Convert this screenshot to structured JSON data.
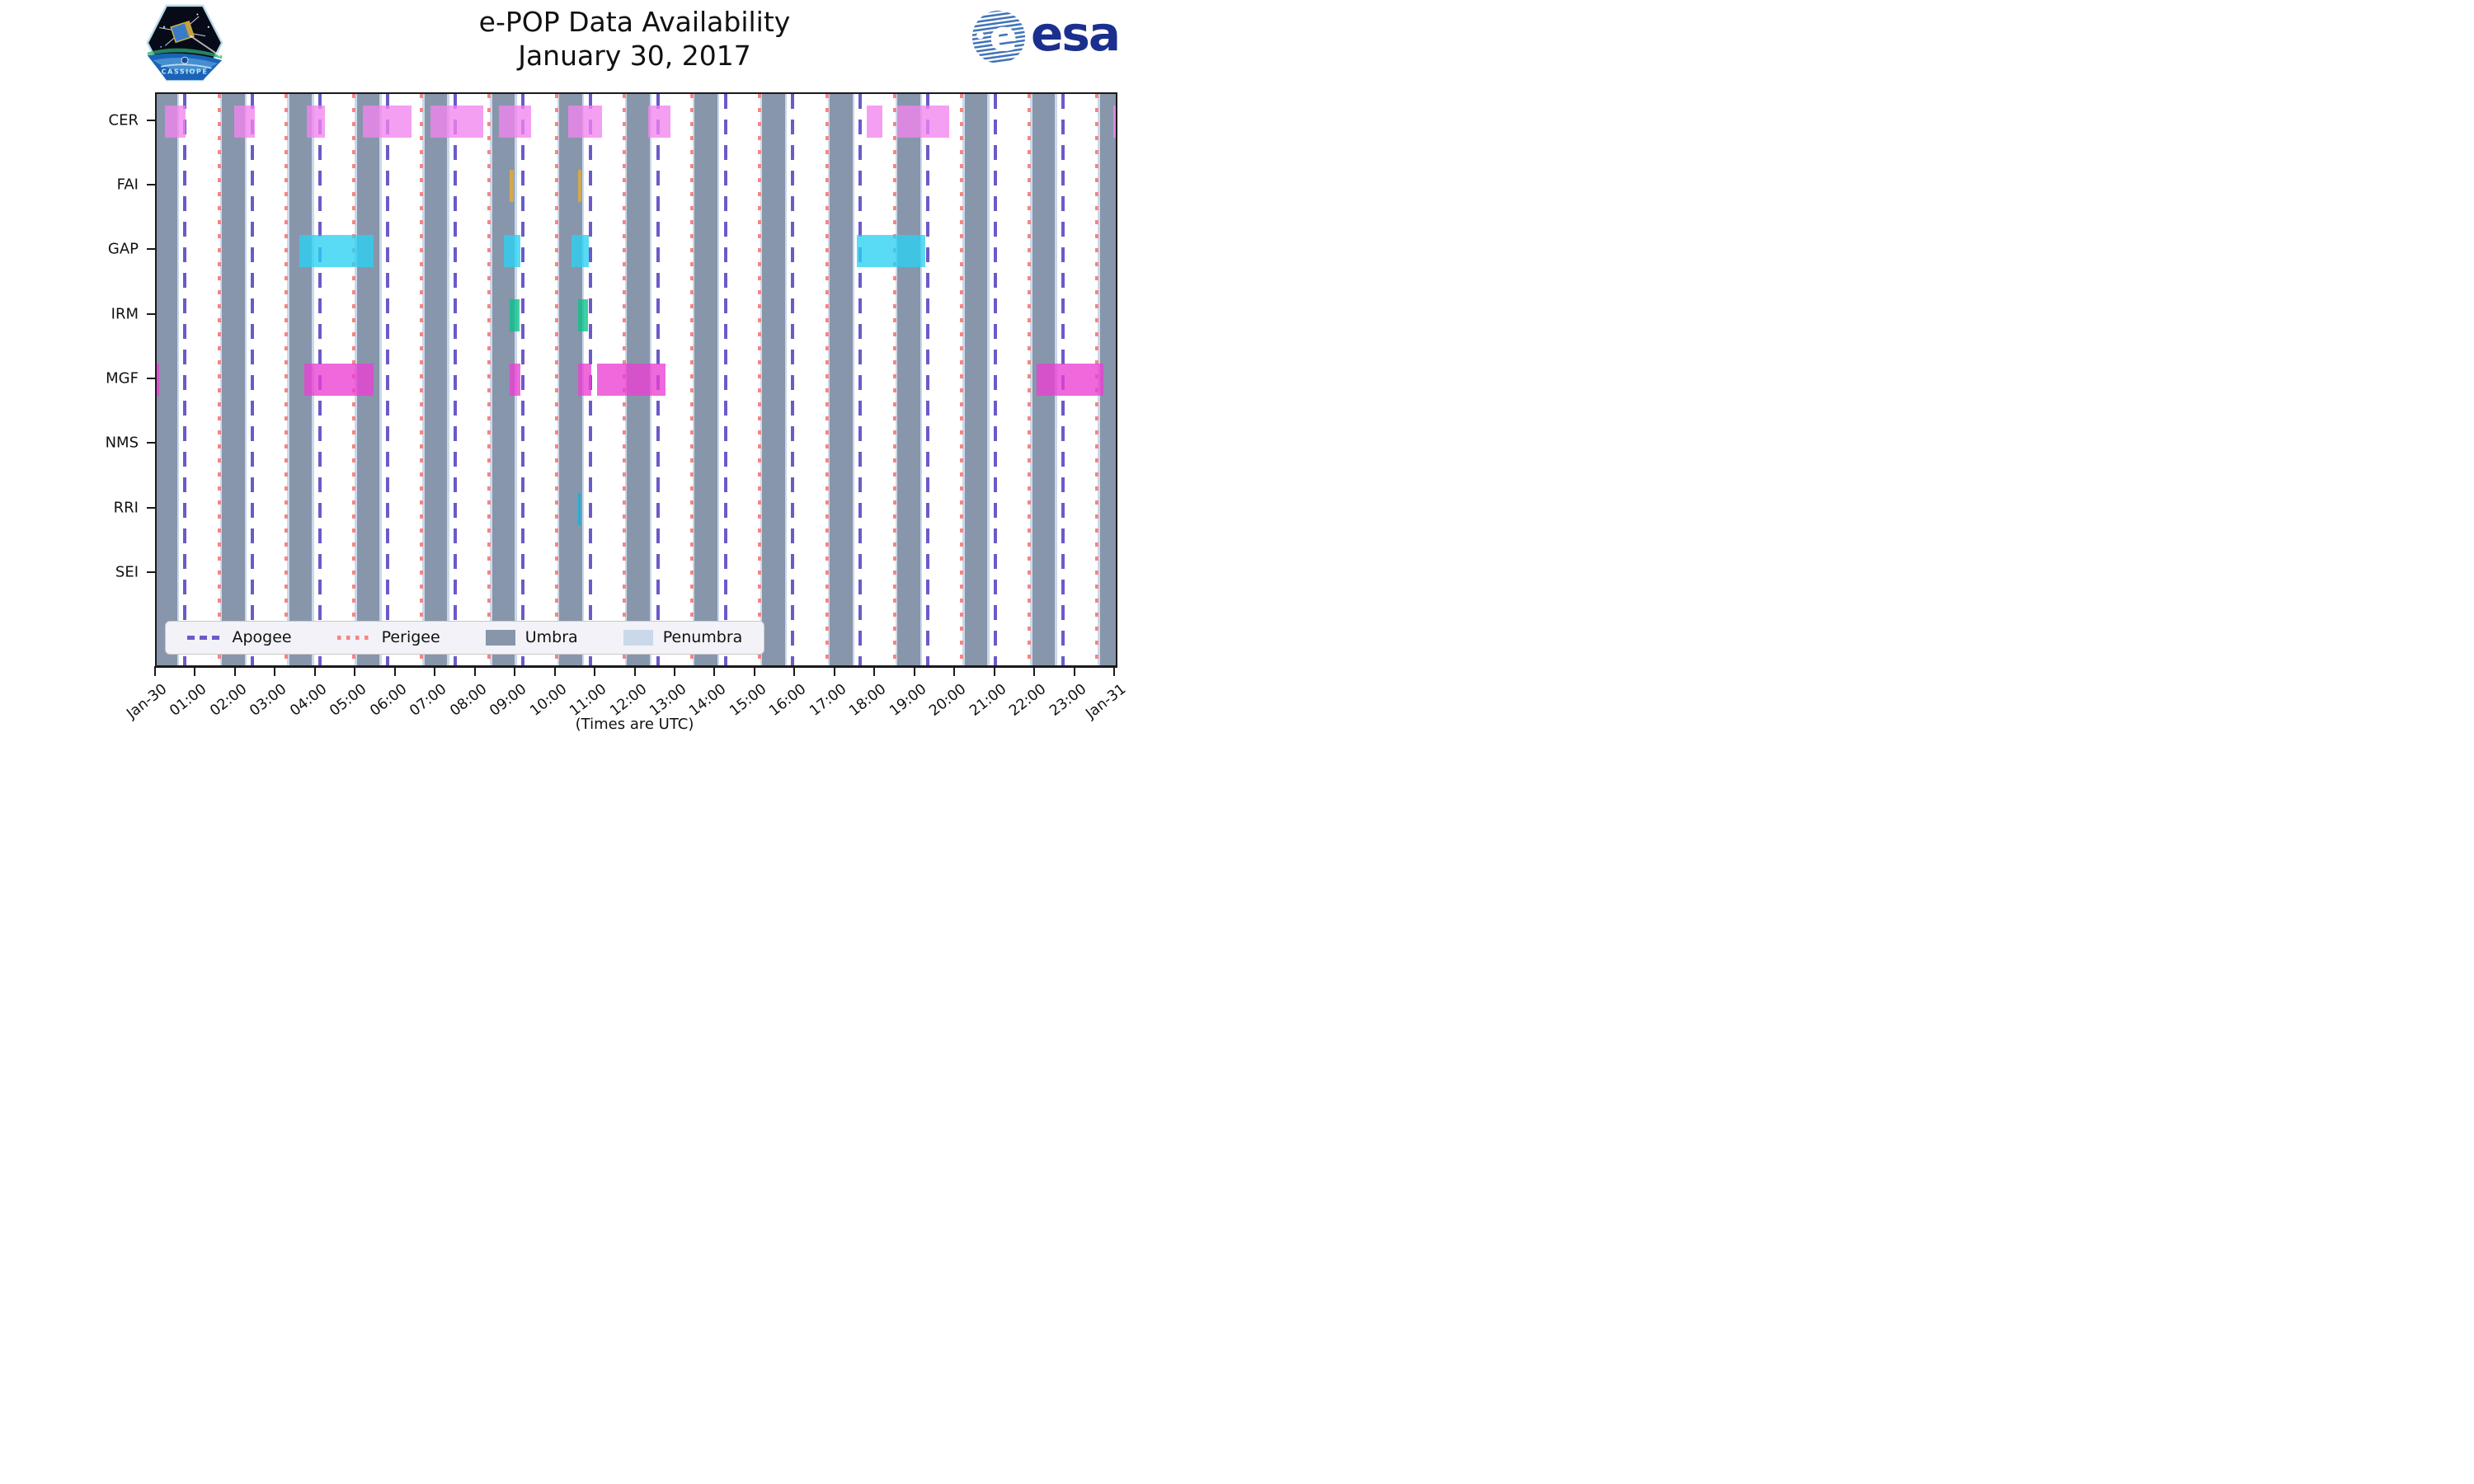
{
  "header": {
    "title": "e-POP Data Availability",
    "subtitle": "January 30, 2017"
  },
  "logos": {
    "cassiope_label": "CASSIOPE",
    "esa_label": "esa"
  },
  "axis": {
    "x_label": "(Times are UTC)",
    "x_tick_labels": [
      "Jan-30",
      "01:00",
      "02:00",
      "03:00",
      "04:00",
      "05:00",
      "06:00",
      "07:00",
      "08:00",
      "09:00",
      "10:00",
      "11:00",
      "12:00",
      "13:00",
      "14:00",
      "15:00",
      "16:00",
      "17:00",
      "18:00",
      "19:00",
      "20:00",
      "21:00",
      "22:00",
      "23:00",
      "Jan-31"
    ],
    "y_labels": [
      "CER",
      "FAI",
      "GAP",
      "IRM",
      "MGF",
      "NMS",
      "RRI",
      "SEI"
    ]
  },
  "legend": [
    {
      "label": "Apogee",
      "swatch": "dashed-line",
      "color": "#6A5BC8"
    },
    {
      "label": "Perigee",
      "swatch": "dotted-line",
      "color": "#F58585"
    },
    {
      "label": "Umbra",
      "swatch": "box",
      "color": "#8796AB"
    },
    {
      "label": "Penumbra",
      "swatch": "box",
      "color": "#C9D9E9"
    }
  ],
  "chart_data": {
    "type": "timeline",
    "title": "e-POP Data Availability",
    "subtitle": "January 30, 2017",
    "x_unit": "hours UTC on 2017-01-30",
    "x_range_hours": [
      0,
      24
    ],
    "rows": [
      "CER",
      "FAI",
      "GAP",
      "IRM",
      "MGF",
      "NMS",
      "RRI",
      "SEI"
    ],
    "orbit_markers": {
      "apogee_hours": [
        0.71,
        2.4,
        4.09,
        5.78,
        7.47,
        9.16,
        10.85,
        12.54,
        14.23,
        15.92,
        17.61,
        19.3,
        20.99,
        22.68
      ],
      "perigee_hours": [
        1.56,
        3.25,
        4.94,
        6.63,
        8.32,
        10.01,
        11.7,
        13.39,
        15.08,
        16.77,
        18.46,
        20.15,
        21.84,
        23.53
      ],
      "umbra_intervals": [
        [
          -0.06,
          0.51
        ],
        [
          1.63,
          2.2
        ],
        [
          3.32,
          3.89
        ],
        [
          5.01,
          5.58
        ],
        [
          6.7,
          7.27
        ],
        [
          8.39,
          8.96
        ],
        [
          10.08,
          10.65
        ],
        [
          11.77,
          12.34
        ],
        [
          13.46,
          14.03
        ],
        [
          15.15,
          15.72
        ],
        [
          16.84,
          17.41
        ],
        [
          18.53,
          19.1
        ],
        [
          20.22,
          20.79
        ],
        [
          21.91,
          22.48
        ],
        [
          23.6,
          24.17
        ]
      ],
      "penumbra_edge_hours": 0.05
    },
    "series": [
      {
        "name": "CER",
        "color": "#F284EE",
        "intervals": [
          [
            0.2,
            0.73
          ],
          [
            1.95,
            2.46
          ],
          [
            3.75,
            4.2
          ],
          [
            5.15,
            6.38
          ],
          [
            6.86,
            8.18
          ],
          [
            8.57,
            9.37
          ],
          [
            10.29,
            11.15
          ],
          [
            12.3,
            12.86
          ],
          [
            17.76,
            18.15
          ],
          [
            18.53,
            19.83
          ],
          [
            23.93,
            24.0
          ]
        ]
      },
      {
        "name": "FAI",
        "color": "#E5AE33",
        "intervals": [
          [
            8.84,
            8.93
          ],
          [
            10.54,
            10.63
          ]
        ]
      },
      {
        "name": "GAP",
        "color": "#2CD1F2",
        "intervals": [
          [
            3.56,
            5.42
          ],
          [
            8.69,
            9.1
          ],
          [
            10.38,
            10.81
          ],
          [
            17.52,
            19.23
          ]
        ]
      },
      {
        "name": "IRM",
        "color": "#0AC28A",
        "intervals": [
          [
            8.84,
            9.09
          ],
          [
            10.54,
            10.8
          ]
        ]
      },
      {
        "name": "MGF",
        "color": "#EA3FD4",
        "intervals": [
          [
            0.01,
            0.06
          ],
          [
            3.69,
            5.42
          ],
          [
            8.83,
            9.11
          ],
          [
            10.54,
            10.87
          ],
          [
            11.01,
            12.74
          ],
          [
            22.01,
            23.69
          ]
        ]
      },
      {
        "name": "NMS",
        "color": "#EA3FD4",
        "intervals": []
      },
      {
        "name": "RRI",
        "color": "#00B8E0",
        "intervals": [
          [
            10.55,
            10.61
          ]
        ]
      },
      {
        "name": "SEI",
        "color": "#999999",
        "intervals": []
      }
    ]
  }
}
